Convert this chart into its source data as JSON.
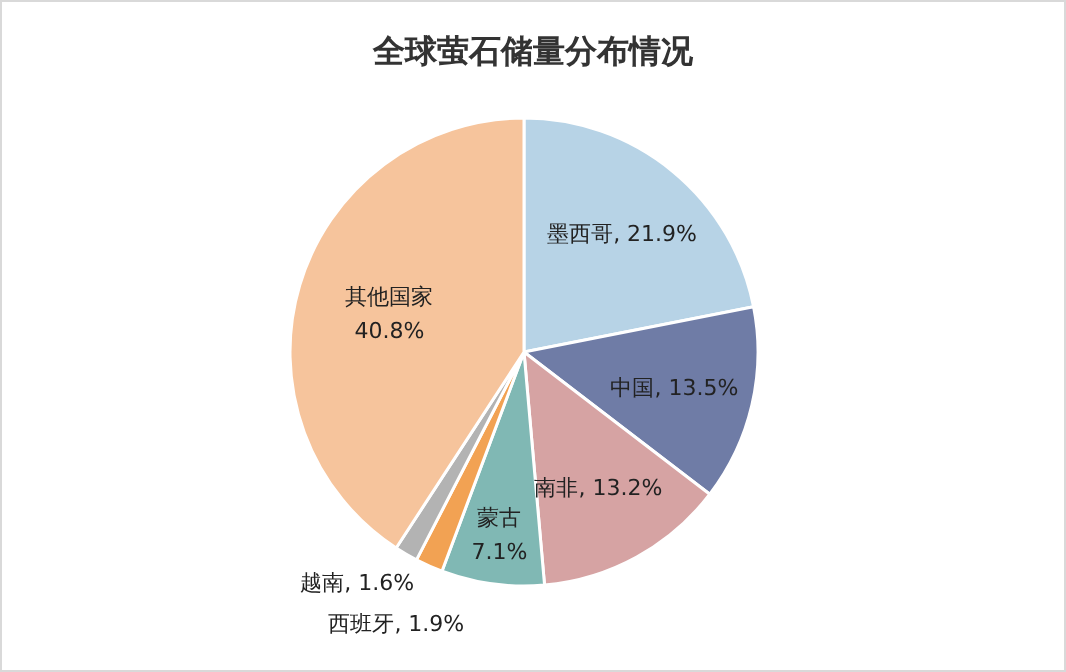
{
  "chart_data": {
    "type": "pie",
    "title": "全球萤石储量分布情况",
    "categories": [
      "墨西哥",
      "中国",
      "南非",
      "蒙古",
      "西班牙",
      "越南",
      "其他国家"
    ],
    "values": [
      21.9,
      13.5,
      13.2,
      7.1,
      1.9,
      1.6,
      40.8
    ],
    "value_labels": [
      "21.9%",
      "13.5%",
      "13.2%",
      "7.1%",
      "1.9%",
      "1.6%",
      "40.8%"
    ],
    "colors": [
      "#b7d3e6",
      "#6f7ca6",
      "#d6a3a3",
      "#80b8b4",
      "#f2a253",
      "#b3b3b3",
      "#f6c49c"
    ]
  }
}
